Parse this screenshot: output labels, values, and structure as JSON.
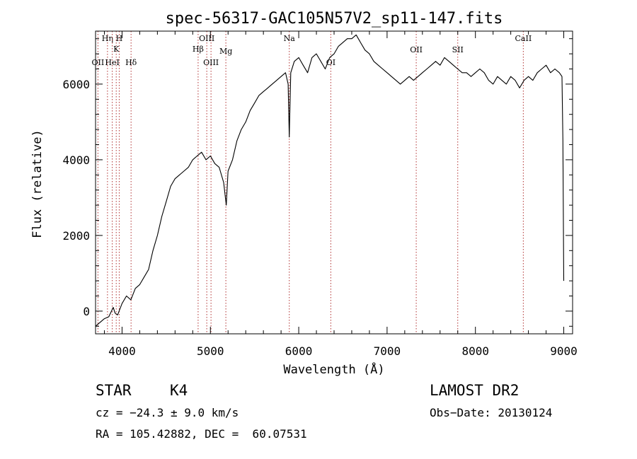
{
  "chart_data": {
    "type": "line",
    "title": "spec-56317-GAC105N57V2_sp11-147.fits",
    "xlabel": "Wavelength (Å)",
    "ylabel": "Flux (relative)",
    "xlim": [
      3700,
      9100
    ],
    "ylim": [
      -600,
      7400
    ],
    "xticks": [
      4000,
      5000,
      6000,
      7000,
      8000,
      9000
    ],
    "xtick_labels": [
      "4000",
      "5000",
      "6000",
      "7000",
      "8000",
      "9000"
    ],
    "yticks": [
      0,
      2000,
      4000,
      6000
    ],
    "ytick_labels": [
      "0",
      "2000",
      "4000",
      "6000"
    ],
    "grid": false,
    "series": [
      {
        "color": "#000000",
        "x": [
          3700,
          3750,
          3800,
          3850,
          3880,
          3900,
          3920,
          3950,
          4000,
          4050,
          4100,
          4150,
          4200,
          4250,
          4300,
          4350,
          4400,
          4450,
          4500,
          4550,
          4600,
          4650,
          4700,
          4750,
          4800,
          4850,
          4900,
          4950,
          5000,
          5050,
          5100,
          5150,
          5180,
          5200,
          5250,
          5300,
          5350,
          5400,
          5450,
          5500,
          5550,
          5600,
          5650,
          5700,
          5750,
          5800,
          5850,
          5880,
          5893,
          5910,
          5950,
          6000,
          6050,
          6100,
          6150,
          6200,
          6250,
          6300,
          6350,
          6400,
          6450,
          6500,
          6550,
          6600,
          6650,
          6700,
          6750,
          6800,
          6850,
          6900,
          6950,
          7000,
          7050,
          7100,
          7150,
          7200,
          7250,
          7300,
          7350,
          7400,
          7450,
          7500,
          7550,
          7600,
          7650,
          7700,
          7750,
          7800,
          7850,
          7900,
          7950,
          8000,
          8050,
          8100,
          8150,
          8200,
          8250,
          8300,
          8350,
          8400,
          8450,
          8500,
          8550,
          8600,
          8650,
          8700,
          8750,
          8800,
          8850,
          8900,
          8950,
          8980,
          8990,
          9000
        ],
        "y": [
          -400,
          -300,
          -200,
          -150,
          0,
          100,
          -50,
          -100,
          200,
          400,
          300,
          600,
          700,
          900,
          1100,
          1600,
          2000,
          2500,
          2900,
          3300,
          3500,
          3600,
          3700,
          3800,
          4000,
          4100,
          4200,
          4000,
          4100,
          3900,
          3800,
          3400,
          2800,
          3700,
          4000,
          4500,
          4800,
          5000,
          5300,
          5500,
          5700,
          5800,
          5900,
          6000,
          6100,
          6200,
          6300,
          6000,
          4600,
          6300,
          6600,
          6700,
          6500,
          6300,
          6700,
          6800,
          6600,
          6400,
          6700,
          6800,
          7000,
          7100,
          7200,
          7200,
          7300,
          7100,
          6900,
          6800,
          6600,
          6500,
          6400,
          6300,
          6200,
          6100,
          6000,
          6100,
          6200,
          6100,
          6200,
          6300,
          6400,
          6500,
          6600,
          6500,
          6700,
          6600,
          6500,
          6400,
          6300,
          6300,
          6200,
          6300,
          6400,
          6300,
          6100,
          6000,
          6200,
          6100,
          6000,
          6200,
          6100,
          5900,
          6100,
          6200,
          6100,
          6300,
          6400,
          6500,
          6300,
          6400,
          6300,
          6200,
          4500,
          800
        ]
      }
    ],
    "line_markers": [
      {
        "label": "OII",
        "x": 3727
      },
      {
        "label": "Hη",
        "x": 3835
      },
      {
        "label": "HeI",
        "x": 3889
      },
      {
        "label": "K",
        "x": 3934
      },
      {
        "label": "H",
        "x": 3968
      },
      {
        "label": "Hδ",
        "x": 4102
      },
      {
        "label": "Hβ",
        "x": 4861
      },
      {
        "label": "OIII",
        "x": 4959
      },
      {
        "label": "OIII",
        "x": 5007
      },
      {
        "label": "Mg",
        "x": 5175
      },
      {
        "label": "Na",
        "x": 5893
      },
      {
        "label": "OI",
        "x": 6363
      },
      {
        "label": "OII",
        "x": 7330
      },
      {
        "label": "SII",
        "x": 7800
      },
      {
        "label": "CaII",
        "x": 8542
      }
    ]
  },
  "info": {
    "class": "STAR",
    "subclass": "K4",
    "survey": "LAMOST DR2",
    "cz": "cz = −24.3 ± 9.0 km/s",
    "obs_date": "Obs−Date: 20130124",
    "coords": "RA = 105.42882, DEC =  60.07531"
  }
}
